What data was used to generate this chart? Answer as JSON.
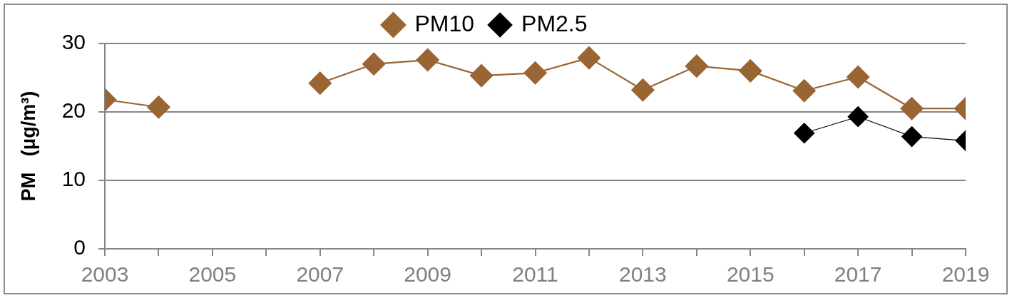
{
  "chart_data": {
    "type": "line",
    "x": [
      2003,
      2004,
      2005,
      2006,
      2007,
      2008,
      2009,
      2010,
      2011,
      2012,
      2013,
      2014,
      2015,
      2016,
      2017,
      2018,
      2019
    ],
    "series": [
      {
        "name": "PM10",
        "color": "#996633",
        "values": [
          21.8,
          20.7,
          null,
          null,
          24.2,
          27,
          27.6,
          25.3,
          25.7,
          27.9,
          23.2,
          26.7,
          26,
          23.1,
          25.1,
          20.5,
          20.5
        ]
      },
      {
        "name": "PM2.5",
        "color": "#000000",
        "x": [
          2016,
          2017,
          2018,
          2019
        ],
        "values": [
          16.9,
          19.3,
          16.4,
          15.8
        ]
      }
    ],
    "ylabel": "PM   (μg/m³)",
    "xlim": [
      2003,
      2019
    ],
    "xticks": [
      2003,
      {
        "value": 2004,
        "label": null
      },
      2005,
      {
        "value": 2006,
        "label": null
      },
      2007,
      {
        "value": 2008,
        "label": null
      },
      2009,
      {
        "value": 2010,
        "label": null
      },
      2011,
      {
        "value": 2012,
        "label": null
      },
      2013,
      {
        "value": 2014,
        "label": null
      },
      2015,
      {
        "value": 2016,
        "label": null
      },
      2017,
      {
        "value": 2018,
        "label": null
      },
      2019
    ],
    "ylim": [
      0,
      30
    ],
    "yticks": [
      0,
      10,
      20,
      30
    ],
    "grid": "y",
    "legend": "top",
    "marker": "diamond",
    "line_style": "solid"
  }
}
